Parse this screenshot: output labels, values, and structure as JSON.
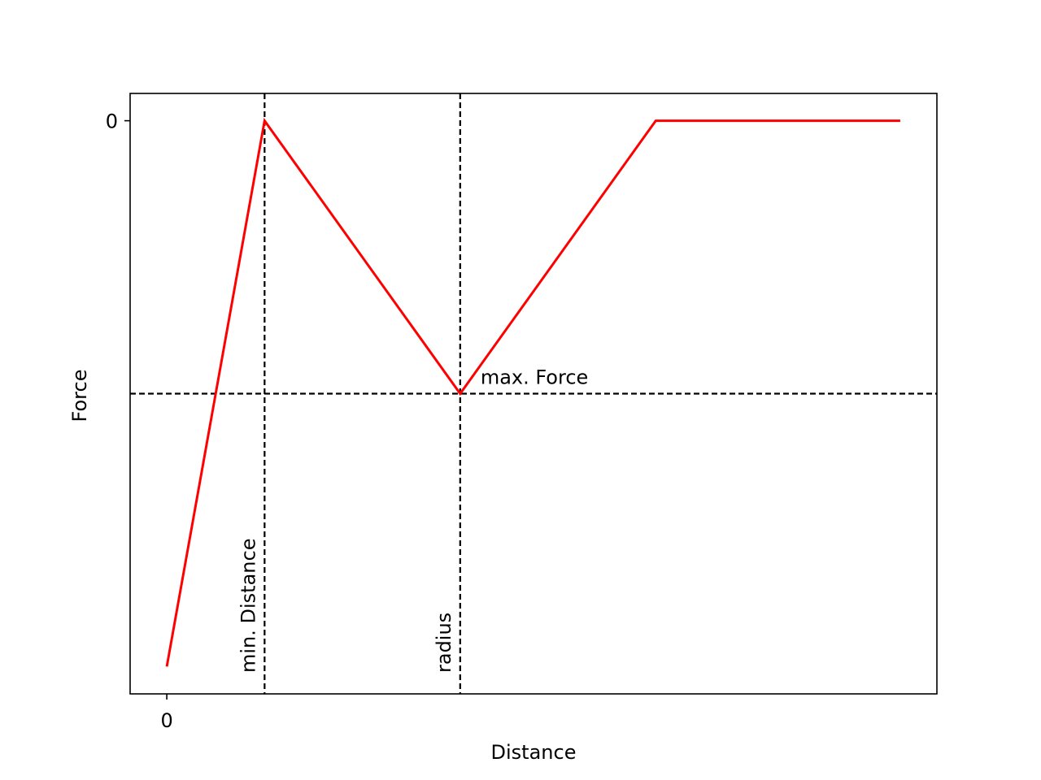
{
  "chart_data": {
    "type": "line",
    "title": "",
    "xlabel": "Distance",
    "ylabel": "Force",
    "xlim": [
      -0.75,
      15.75
    ],
    "ylim": [
      -10.5,
      0.5
    ],
    "x_ticks": [
      {
        "value": 0,
        "label": "0"
      }
    ],
    "y_ticks": [
      {
        "value": 0,
        "label": "0"
      }
    ],
    "grid": false,
    "legend": "none",
    "series": [
      {
        "color": "#ff0000",
        "x": [
          0,
          2,
          6,
          10,
          15
        ],
        "y": [
          -10,
          0,
          -5,
          0,
          0
        ]
      }
    ],
    "reference_lines": [
      {
        "orientation": "vertical",
        "value": 2,
        "label": "min. Distance",
        "style": "dashed",
        "color": "#000000"
      },
      {
        "orientation": "vertical",
        "value": 6,
        "label": "radius",
        "style": "dashed",
        "color": "#000000"
      },
      {
        "orientation": "horizontal",
        "value": -5,
        "label": "max. Force",
        "style": "dashed",
        "color": "#000000"
      }
    ]
  }
}
